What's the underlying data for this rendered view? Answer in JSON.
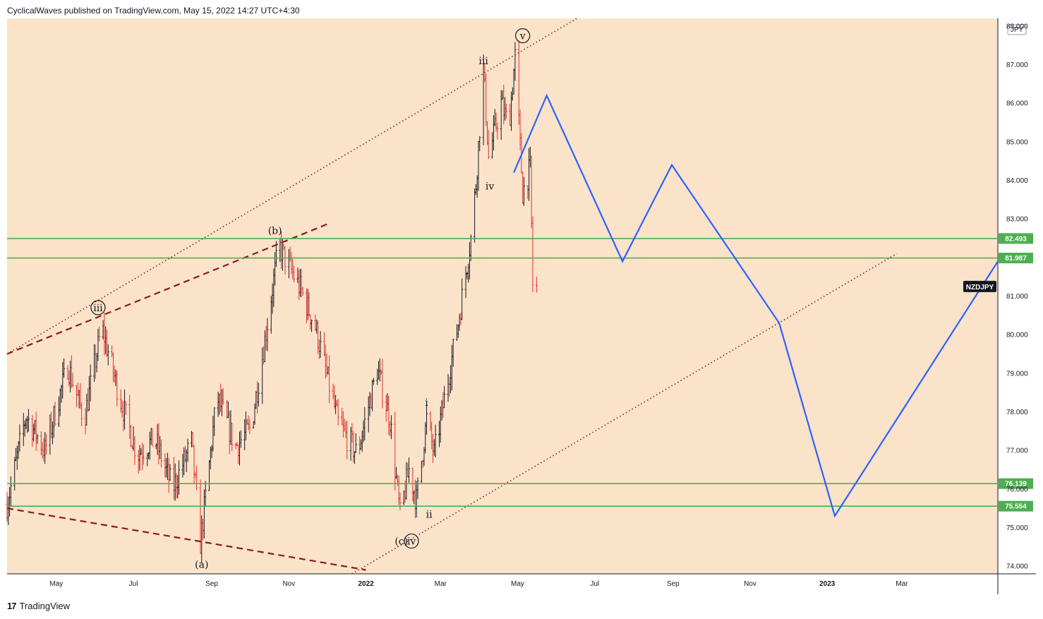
{
  "header": {
    "text": "CyclicalWaves published on TradingView.com, May 15, 2022 14:27 UTC+4:30"
  },
  "footer": {
    "logo": "17",
    "text": "TradingView"
  },
  "colors": {
    "background": "#fbe3c9",
    "up_bar": "#131722",
    "down_bar": "#e03131",
    "support": "#4caf50",
    "projection": "#2962ff",
    "channel": "#8b1a1a",
    "badge": "#131722"
  },
  "chart_data": {
    "type": "line",
    "symbol": "NZDJPY",
    "currency": "JPY",
    "ylim": [
      73.8,
      88.2
    ],
    "y_ticks": [
      "88.000",
      "87.000",
      "86.000",
      "85.000",
      "84.000",
      "83.000",
      "81.000",
      "80.000",
      "79.000",
      "78.000",
      "77.000",
      "76.000",
      "75.000",
      "74.000"
    ],
    "x_ticks": [
      "May",
      "Jul",
      "Sep",
      "Nov",
      "2022",
      "Mar",
      "May",
      "Jul",
      "Sep",
      "Nov",
      "2023",
      "Mar"
    ],
    "x_tick_dates": [
      "2021-05-01",
      "2021-07-01",
      "2021-09-01",
      "2021-11-01",
      "2022-01-01",
      "2022-03-01",
      "2022-05-01",
      "2022-07-01",
      "2022-09-01",
      "2022-11-01",
      "2023-01-01",
      "2023-03-01"
    ],
    "price_path": [
      [
        "2021-03-23",
        75.6
      ],
      [
        "2021-04-07",
        77.9
      ],
      [
        "2021-04-22",
        77.0
      ],
      [
        "2021-05-10",
        79.2
      ],
      [
        "2021-05-23",
        77.8
      ],
      [
        "2021-06-06",
        80.2
      ],
      [
        "2021-06-20",
        78.4
      ],
      [
        "2021-07-04",
        76.9
      ],
      [
        "2021-07-18",
        77.3
      ],
      [
        "2021-08-01",
        76.0
      ],
      [
        "2021-08-16",
        77.2
      ],
      [
        "2021-08-23",
        74.6
      ],
      [
        "2021-09-05",
        78.4
      ],
      [
        "2021-09-20",
        77.1
      ],
      [
        "2021-10-02",
        77.6
      ],
      [
        "2021-10-10",
        79.2
      ],
      [
        "2021-10-24",
        82.3
      ],
      [
        "2021-11-10",
        81.2
      ],
      [
        "2021-11-22",
        80.2
      ],
      [
        "2021-12-10",
        77.7
      ],
      [
        "2021-12-25",
        76.9
      ],
      [
        "2022-01-10",
        79.1
      ],
      [
        "2022-01-20",
        77.8
      ],
      [
        "2022-01-28",
        75.3
      ],
      [
        "2022-02-04",
        76.5
      ],
      [
        "2022-02-10",
        75.7
      ],
      [
        "2022-02-18",
        77.8
      ],
      [
        "2022-02-24",
        76.9
      ],
      [
        "2022-03-05",
        78.5
      ],
      [
        "2022-03-15",
        80.3
      ],
      [
        "2022-03-25",
        82.5
      ],
      [
        "2022-03-29",
        83.9
      ],
      [
        "2022-04-04",
        86.9
      ],
      [
        "2022-04-08",
        84.6
      ],
      [
        "2022-04-18",
        86.0
      ],
      [
        "2022-04-24",
        85.4
      ],
      [
        "2022-04-29",
        87.2
      ],
      [
        "2022-05-05",
        83.7
      ],
      [
        "2022-05-11",
        84.3
      ],
      [
        "2022-05-13",
        81.3
      ],
      [
        "2022-05-15",
        79.5
      ],
      [
        "2022-05-16",
        81.2
      ]
    ],
    "projection_path": [
      [
        "2022-04-28",
        84.2
      ],
      [
        "2022-05-24",
        86.2
      ],
      [
        "2022-07-23",
        81.9
      ],
      [
        "2022-08-31",
        84.4
      ],
      [
        "2022-11-24",
        80.3
      ],
      [
        "2023-01-07",
        75.3
      ],
      [
        "2023-05-16",
        81.9
      ]
    ],
    "horizontal_levels": [
      {
        "value": 82.493,
        "label": "82.493"
      },
      {
        "value": 81.987,
        "label": "81.987"
      },
      {
        "value": 76.139,
        "label": "76.139"
      },
      {
        "value": 75.554,
        "label": "75.554"
      }
    ],
    "current_price_badge": {
      "value": 81.25,
      "label": "NZDJPY"
    },
    "channels": [
      {
        "style": "dotted",
        "points": [
          [
            "2021-03-23",
            79.5
          ],
          [
            "2022-06-17",
            88.2
          ]
        ]
      },
      {
        "style": "dotted",
        "points": [
          [
            "2021-12-21",
            73.8
          ],
          [
            "2023-02-25",
            82.1
          ]
        ]
      },
      {
        "style": "dashed",
        "points": [
          [
            "2021-03-23",
            79.5
          ],
          [
            "2021-12-04",
            82.9
          ]
        ]
      },
      {
        "style": "dashed",
        "points": [
          [
            "2021-03-23",
            75.5
          ],
          [
            "2022-01-01",
            73.9
          ]
        ]
      }
    ],
    "wave_labels": [
      {
        "text": "iii",
        "date": "2021-06-03",
        "value": 80.7,
        "circled": true
      },
      {
        "text": "(a)",
        "date": "2021-08-24",
        "value": 74.05,
        "circled": false
      },
      {
        "text": "(b)",
        "date": "2021-10-21",
        "value": 82.7,
        "circled": false
      },
      {
        "text": "(c)",
        "date": "2022-01-29",
        "value": 74.65,
        "circled": false
      },
      {
        "text": "iv",
        "date": "2022-02-06",
        "value": 74.65,
        "circled": true
      },
      {
        "text": "i",
        "date": "2022-02-18",
        "value": 78.25,
        "circled": false
      },
      {
        "text": "ii",
        "date": "2022-02-20",
        "value": 75.35,
        "circled": false
      },
      {
        "text": "iii",
        "date": "2022-04-04",
        "value": 87.1,
        "circled": false
      },
      {
        "text": "iv",
        "date": "2022-04-09",
        "value": 83.85,
        "circled": false
      },
      {
        "text": "v",
        "date": "2022-05-05",
        "value": 87.75,
        "circled": true
      }
    ]
  }
}
